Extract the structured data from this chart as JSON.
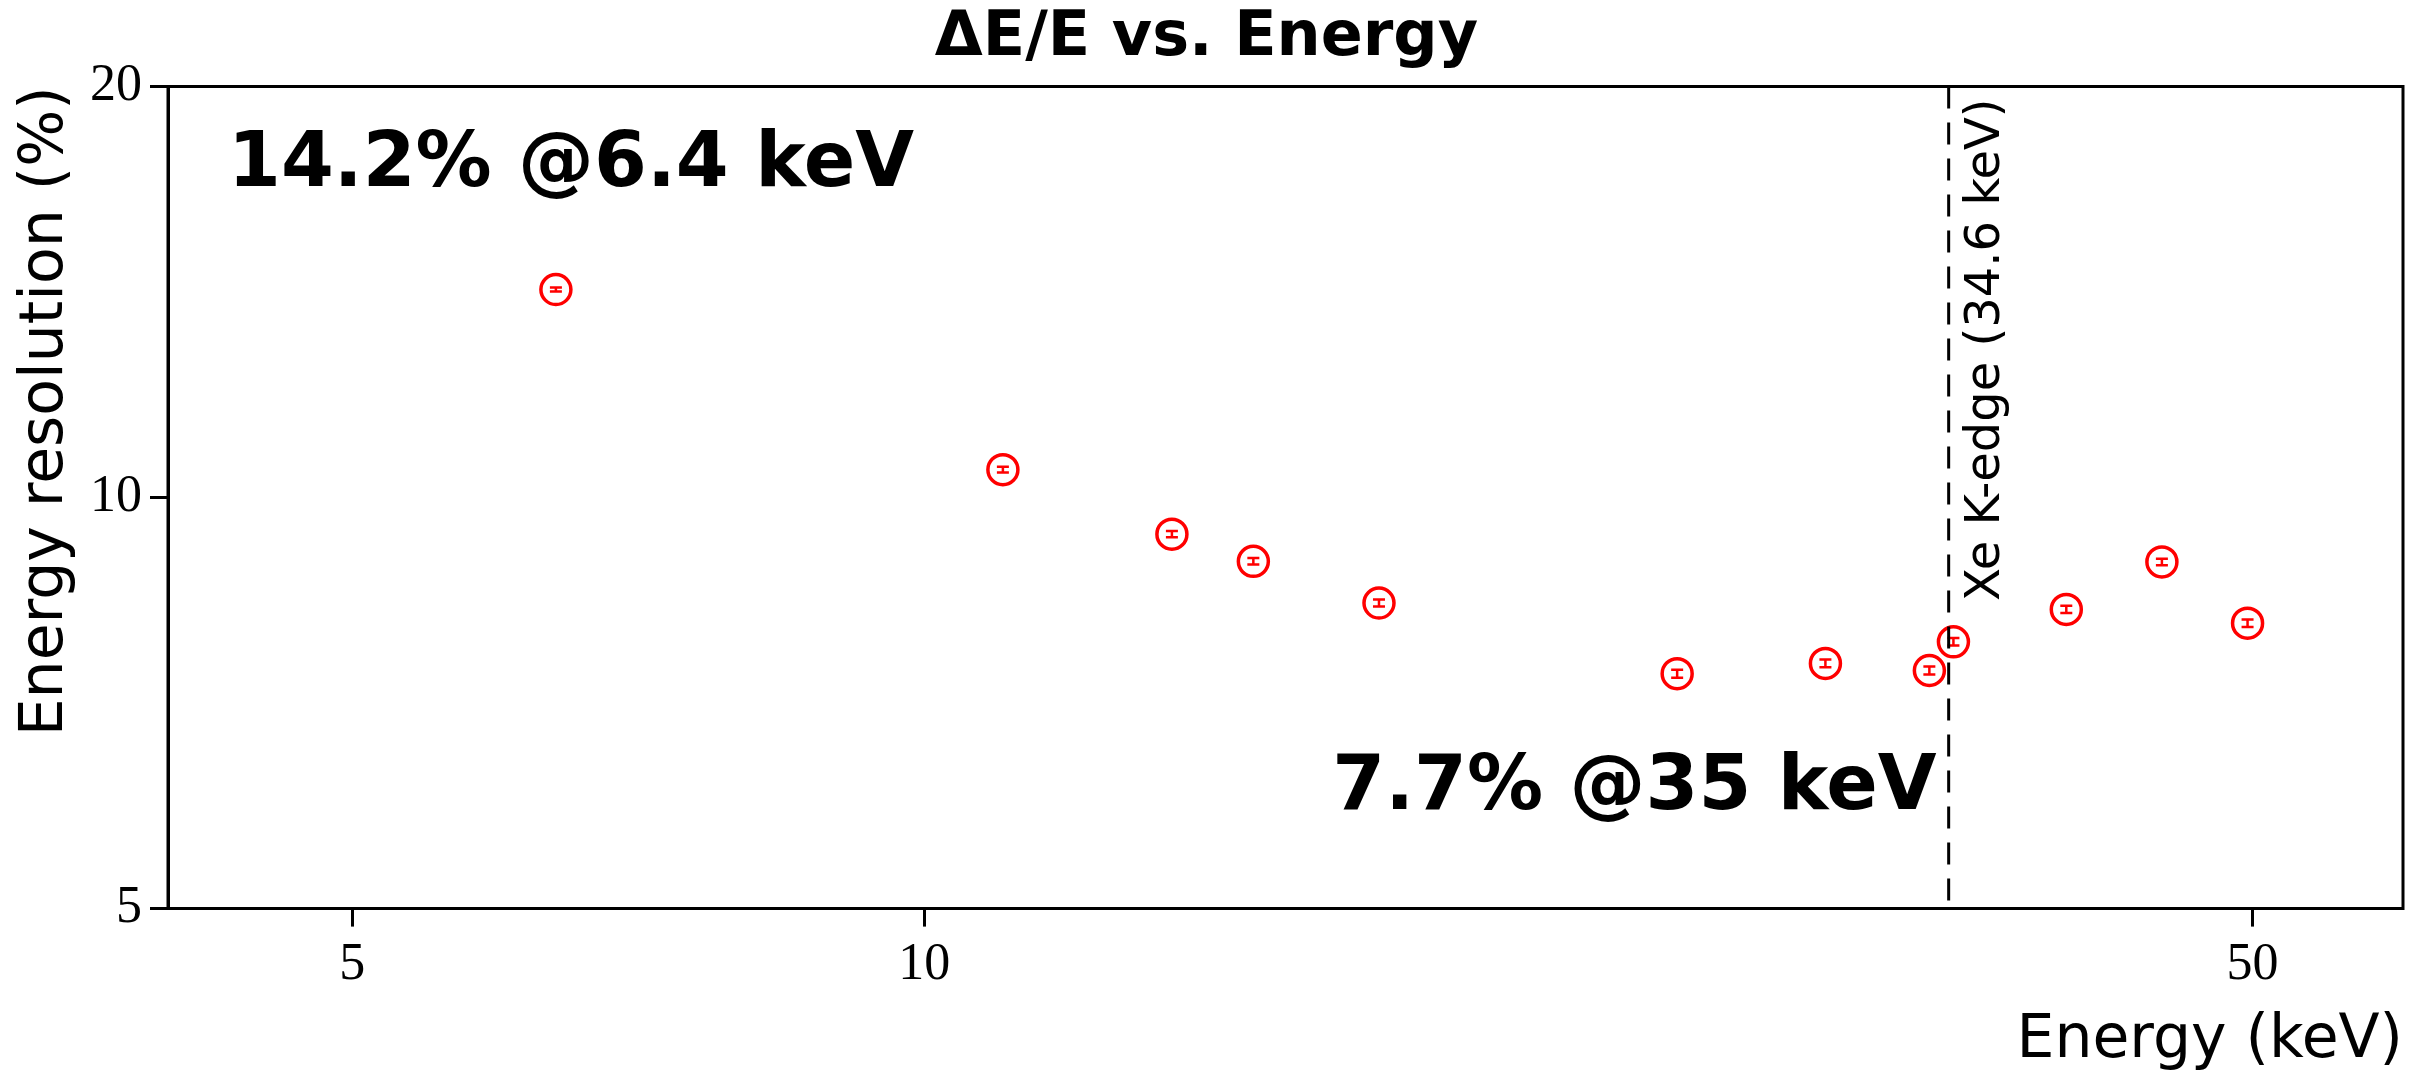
{
  "chart_data": {
    "type": "scatter",
    "title": "ΔE/E vs. Energy",
    "xlabel": "Energy (keV)",
    "ylabel": "Energy resolution (%)",
    "x": [
      6.4,
      11,
      13.5,
      14.9,
      17.35,
      24.9,
      29.8,
      33.8,
      34.8,
      39.9,
      44.8,
      49.7
    ],
    "series": [
      {
        "color": "#ff0000",
        "values": [
          14.2,
          10.48,
          9.4,
          8.98,
          8.37,
          7.43,
          7.56,
          7.47,
          7.84,
          8.28,
          8.97,
          8.09
        ],
        "errors": [
          0.05,
          0.05,
          0.05,
          0.05,
          0.05,
          0.05,
          0.05,
          0.05,
          0.05,
          0.05,
          0.05,
          0.05
        ]
      }
    ],
    "marker": "circle",
    "log": "xy",
    "grid": false,
    "legend": false,
    "xlim": [
      4,
      60
    ],
    "xticks": [
      5,
      10,
      50
    ],
    "ylim": [
      5,
      20
    ],
    "yticks": [
      5,
      10,
      20
    ],
    "ref_lines": [
      {
        "axis": "x",
        "value": 34.6,
        "label": "Xe K-edge (34.6 keV)",
        "color": "#000000",
        "line_style": "dashed"
      }
    ],
    "annotations": [
      "14.2% @6.4 keV",
      "7.7% @35 keV"
    ]
  }
}
